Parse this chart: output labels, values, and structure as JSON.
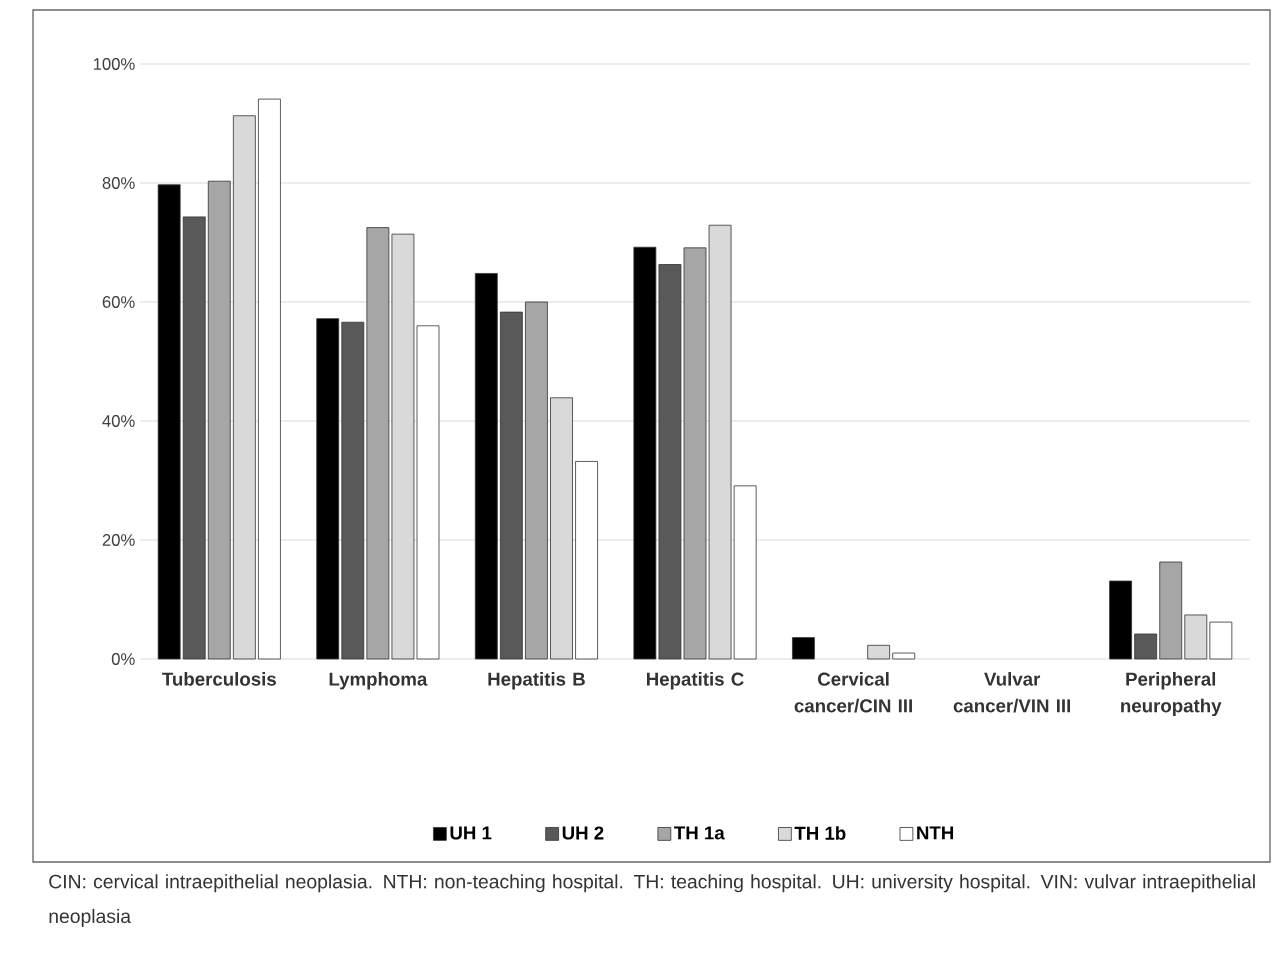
{
  "chart_data": {
    "type": "bar",
    "categories": [
      "Tuberculosis",
      "Lymphoma",
      "Hepatitis B",
      "Hepatitis C",
      "Cervical cancer/CIN III",
      "Vulvar cancer/VIN III",
      "Peripheral neuropathy"
    ],
    "series": [
      {
        "name": "UH 1",
        "color": "#000000",
        "values": [
          79.7,
          57.2,
          64.8,
          69.2,
          3.6,
          null,
          13.1
        ]
      },
      {
        "name": "UH 2",
        "color": "#595959",
        "values": [
          74.3,
          56.6,
          58.3,
          66.3,
          null,
          null,
          4.2
        ]
      },
      {
        "name": "TH 1a",
        "color": "#a6a6a6",
        "values": [
          80.3,
          72.5,
          60.0,
          69.1,
          null,
          null,
          16.3
        ]
      },
      {
        "name": "TH 1b",
        "color": "#d9d9d9",
        "values": [
          91.3,
          71.4,
          43.9,
          72.9,
          2.3,
          null,
          7.4
        ]
      },
      {
        "name": "NTH",
        "color": "#ffffff",
        "values": [
          94.1,
          56.0,
          33.2,
          29.1,
          1.0,
          null,
          6.2
        ]
      }
    ],
    "ylim": [
      0,
      100
    ],
    "yticks": [
      {
        "value": 0,
        "label": "0%"
      },
      {
        "value": 20,
        "label": "20%"
      },
      {
        "value": 40,
        "label": "40%"
      },
      {
        "value": 60,
        "label": "60%"
      },
      {
        "value": 80,
        "label": "80%"
      },
      {
        "value": 100,
        "label": "100%"
      }
    ],
    "grid": "y",
    "legend": "bottom",
    "annotations": [
      "CIN: cervical intraepithelial neoplasia. NTH: non-teaching hospital. TH: teaching hospital. UH: university hospital. VIN: vulvar intraepithelial neoplasia"
    ]
  }
}
